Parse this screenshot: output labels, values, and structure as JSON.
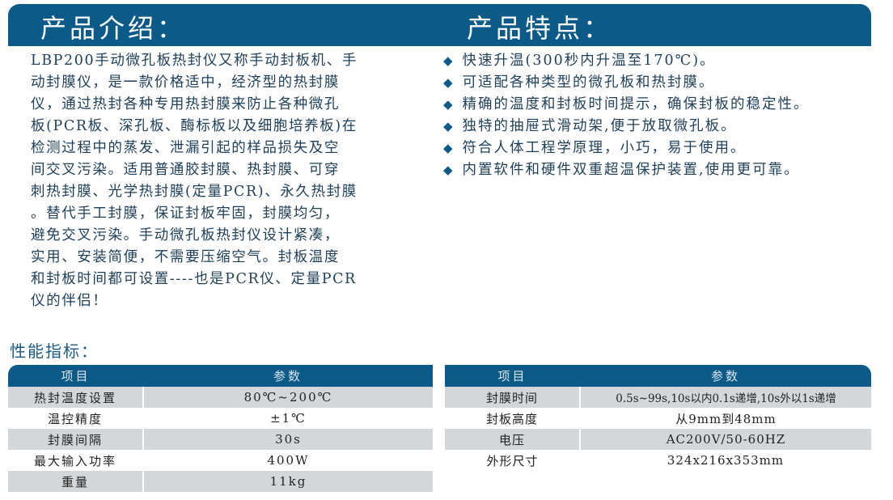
{
  "header": {
    "left_title": "产品介绍：",
    "right_title": "产品特点："
  },
  "intro_lines": [
    "LBP200手动微孔板热封仪又称手动封板机、手",
    "动封膜仪，是一款价格适中，经济型的热封膜",
    "仪，通过热封各种专用热封膜来防止各种微孔",
    "板(PCR板、深孔板、酶标板以及细胞培养板)在",
    "检测过程中的蒸发、泄漏引起的样品损失及空",
    "间交叉污染。适用普通胶封膜、热封膜、可穿",
    "刺热封膜、光学热封膜(定量PCR)、永久热封膜",
    "。替代手工封膜，保证封板牢固，封膜均匀，",
    "避免交叉污染。手动微孔板热封仪设计紧凑，",
    "实用、安装简便，不需要压缩空气。封板温度",
    "和封板时间都可设置----也是PCR仪、定量PCR",
    "仪的伴侣！"
  ],
  "features": [
    "快速升温(300秒内升温至170℃)。",
    "可适配各种类型的微孔板和热封膜。",
    "精确的温度和封板时间提示，确保封板的稳定性。",
    "独特的抽屉式滑动架,便于放取微孔板。",
    "符合人体工程学原理，小巧，易于使用。",
    "内置软件和硬件双重超温保护装置,使用更可靠。"
  ],
  "perf_title": "性能指标：",
  "table_left": {
    "headers": [
      "项目",
      "参数"
    ],
    "rows": [
      [
        "热封温度设置",
        "80℃~200℃"
      ],
      [
        "温控精度",
        "±1℃"
      ],
      [
        "封膜间隔",
        "30s"
      ],
      [
        "最大输入功率",
        "400W"
      ],
      [
        "重量",
        "11kg"
      ]
    ]
  },
  "table_right": {
    "headers": [
      "项目",
      "参数"
    ],
    "rows": [
      [
        "封膜时间",
        "0.5s~99s,10s以内0.1s递增,10s外以1s递增"
      ],
      [
        "封板高度",
        "从9mm到48mm"
      ],
      [
        "电压",
        "AC200V/50-60HZ"
      ],
      [
        "外形尺寸",
        "324x216x353mm"
      ]
    ]
  },
  "colors": {
    "brand": "#0b5a87",
    "row_gray": "#d4d7da"
  }
}
